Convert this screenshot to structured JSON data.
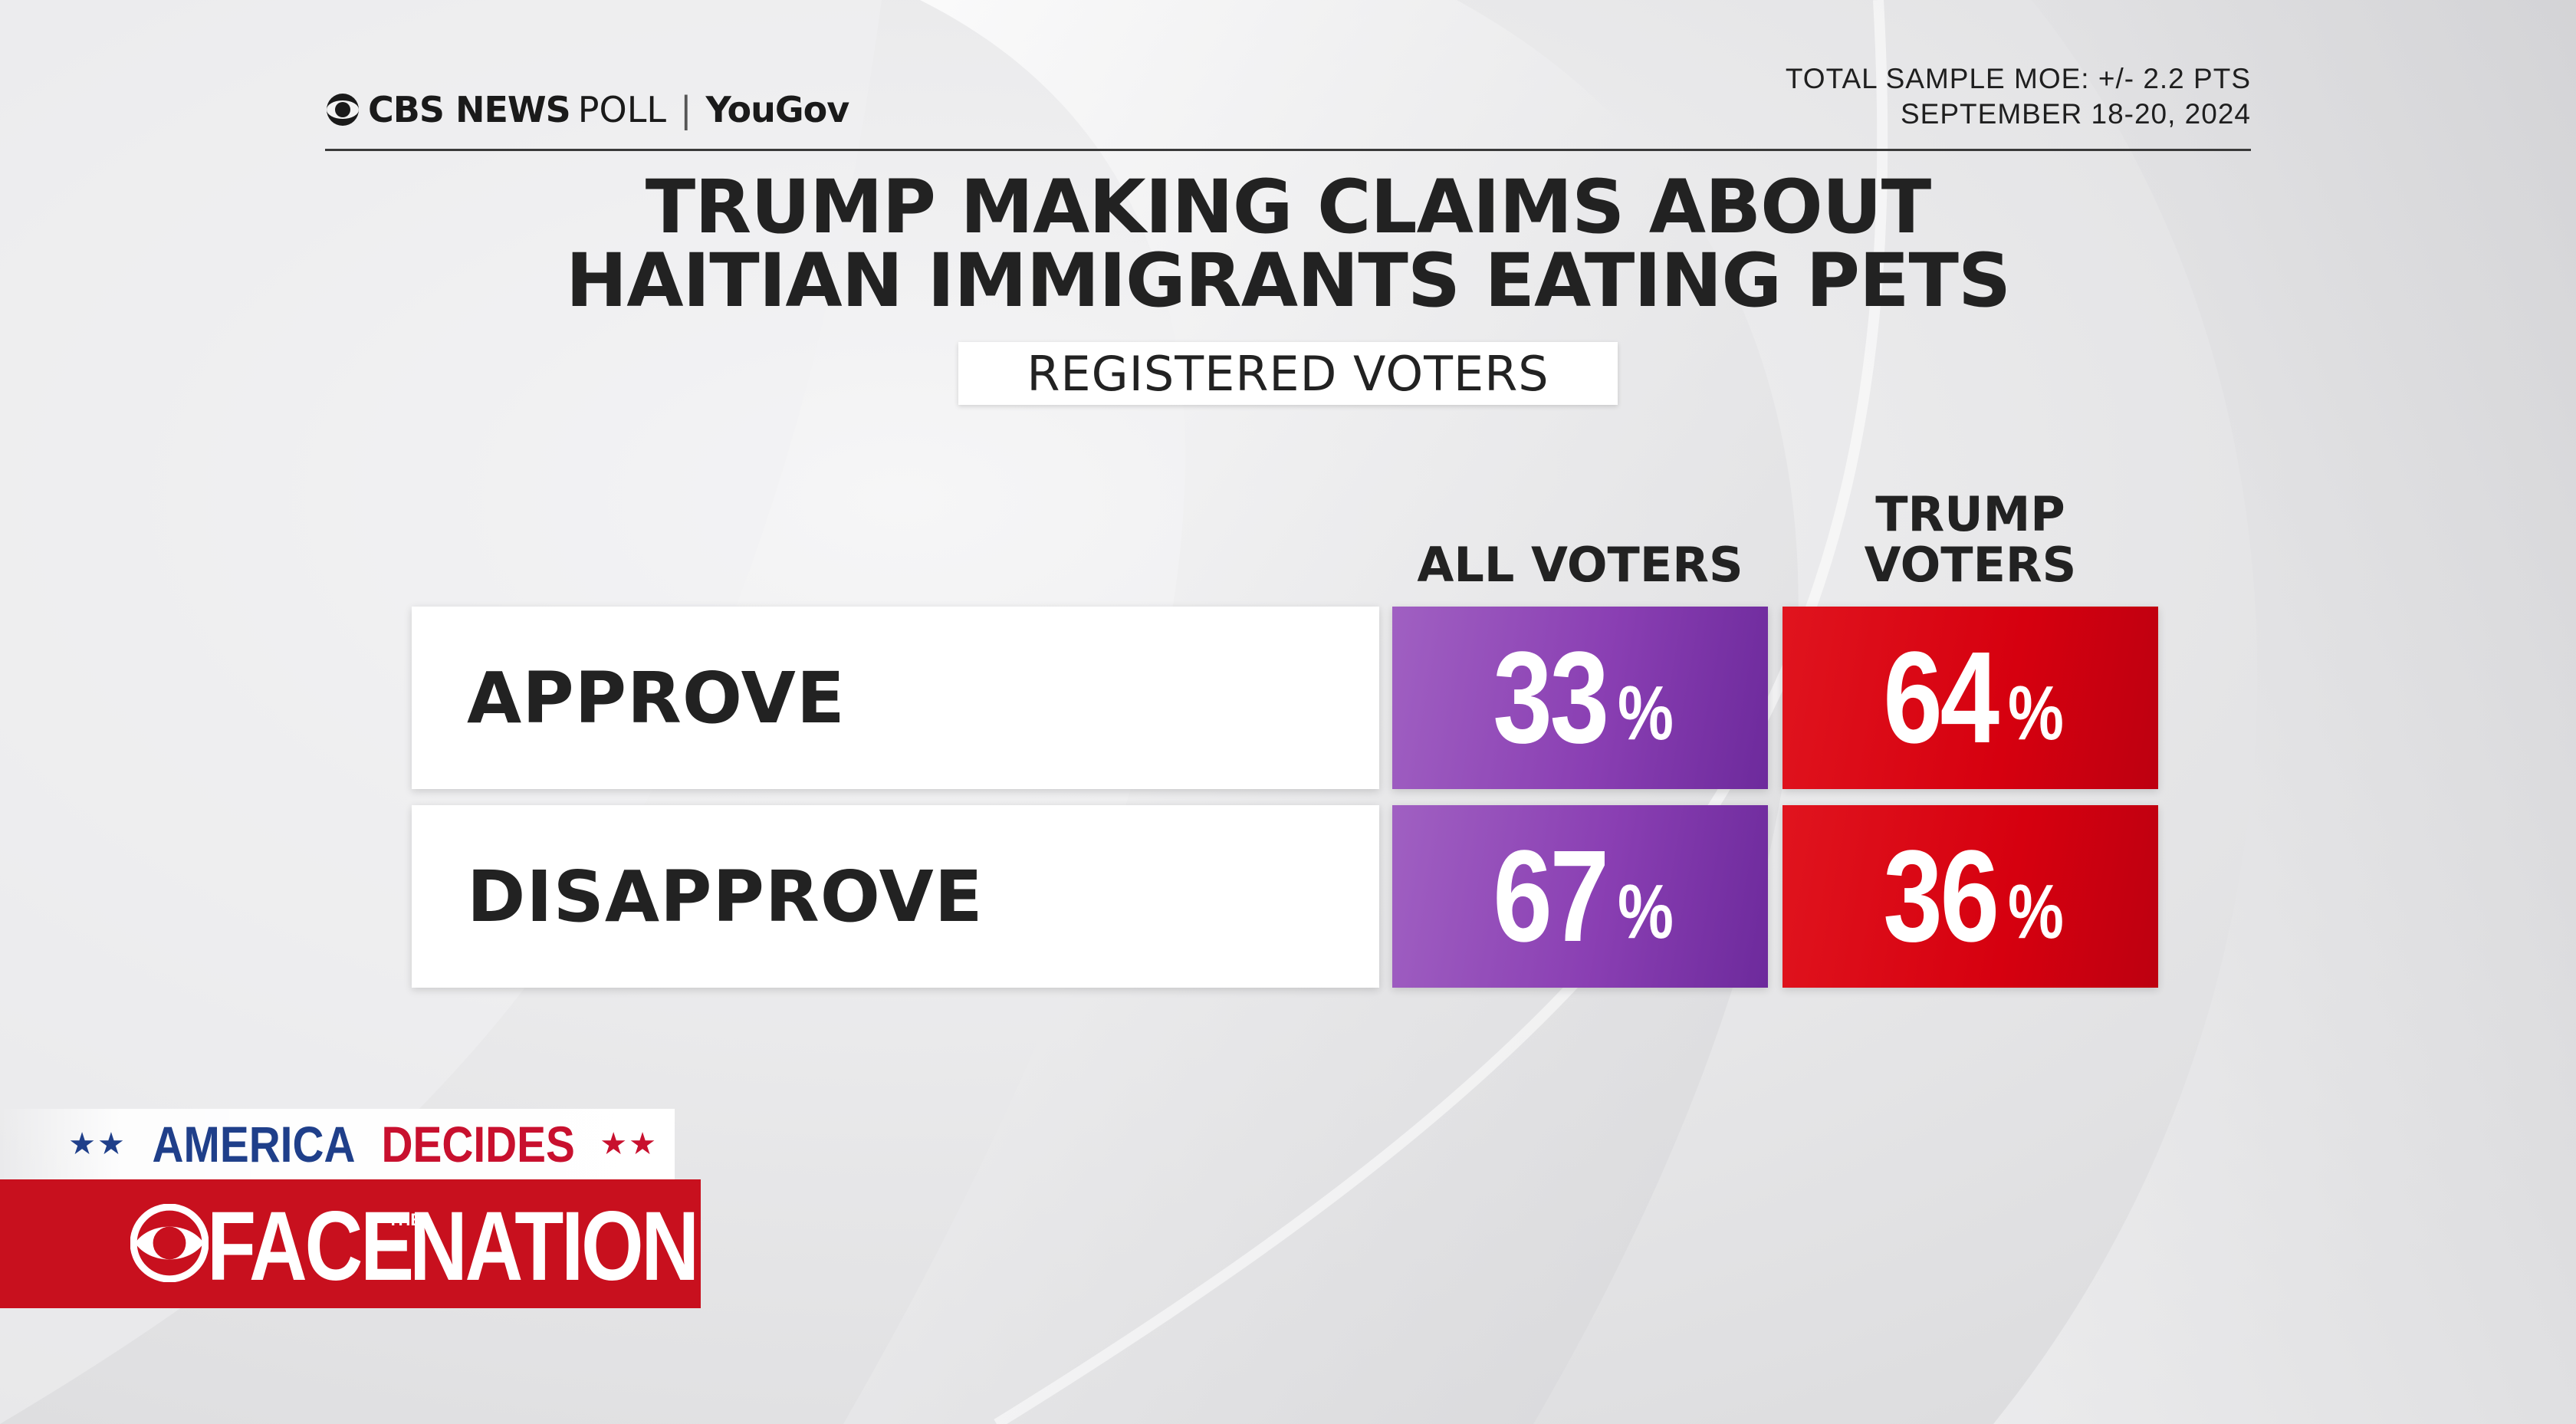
{
  "header": {
    "brand": "CBS NEWS",
    "brand_suffix": "POLL",
    "separator": "|",
    "partner": "YouGov",
    "moe_line": "TOTAL SAMPLE MOE: +/- 2.2 PTS",
    "date_line": "SEPTEMBER 18-20, 2024"
  },
  "colors": {
    "all_voters": "#8a3fb3",
    "trump_voters": "#d6000f",
    "ftn_red": "#c8101e",
    "america_blue": "#1f3f8a"
  },
  "chart_data": {
    "type": "table",
    "title_lines": [
      "TRUMP MAKING CLAIMS ABOUT",
      "HAITIAN IMMIGRANTS EATING PETS"
    ],
    "subtitle": "REGISTERED VOTERS",
    "columns": [
      {
        "label_lines": [
          "ALL VOTERS"
        ]
      },
      {
        "label_lines": [
          "TRUMP",
          "VOTERS"
        ]
      }
    ],
    "rows": [
      {
        "label": "APPROVE",
        "values": [
          33,
          64
        ]
      },
      {
        "label": "DISAPPROVE",
        "values": [
          67,
          36
        ]
      }
    ],
    "unit": "%"
  },
  "branding": {
    "america_stars": "★★",
    "america_word": "AMERICA",
    "decides_word": "DECIDES",
    "show_face": "FACE",
    "show_the": "THE",
    "show_nation": "NATION"
  }
}
